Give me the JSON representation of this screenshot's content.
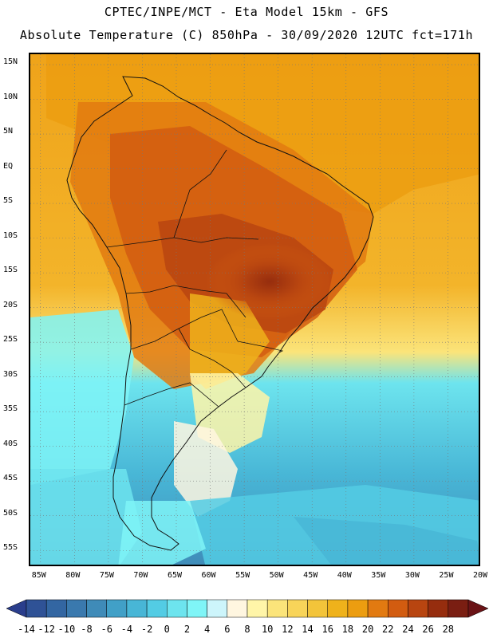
{
  "header": {
    "line1": "CPTEC/INPE/MCT -  Eta Model 15km - GFS",
    "line2": "Absolute Temperature (C) 850hPa - 30/09/2020 12UTC fct=171h"
  },
  "map": {
    "lat_labels": [
      "15N",
      "10N",
      "5N",
      "EQ",
      "5S",
      "10S",
      "15S",
      "20S",
      "25S",
      "30S",
      "35S",
      "40S",
      "45S",
      "50S",
      "55S"
    ],
    "lon_labels": [
      "85W",
      "80W",
      "75W",
      "70W",
      "65W",
      "60W",
      "55W",
      "50W",
      "45W",
      "40W",
      "35W",
      "30W",
      "25W",
      "20W"
    ],
    "lat_range_deg": [
      -57.5,
      16.5
    ],
    "lon_range_deg": [
      -86.5,
      -20.0
    ]
  },
  "legend": {
    "units": "C",
    "levels": [
      "-14",
      "-12",
      "-10",
      "-8",
      "-6",
      "-4",
      "-2",
      "0",
      "2",
      "4",
      "6",
      "8",
      "10",
      "12",
      "14",
      "16",
      "18",
      "20",
      "22",
      "24",
      "26",
      "28"
    ],
    "colors": [
      "#2a3e8c",
      "#2f5296",
      "#3366a2",
      "#3a79ae",
      "#3f8bb8",
      "#41a0c7",
      "#48b6d6",
      "#53cce4",
      "#6de4ee",
      "#7ff5f7",
      "#cdf5fb",
      "#fff6e0",
      "#fff5a8",
      "#fbe47a",
      "#f8d459",
      "#f3c43a",
      "#efb21b",
      "#ec9d10",
      "#e27a11",
      "#d25c10",
      "#b84510",
      "#962d0e",
      "#7a1e12",
      "#6a1316"
    ]
  }
}
